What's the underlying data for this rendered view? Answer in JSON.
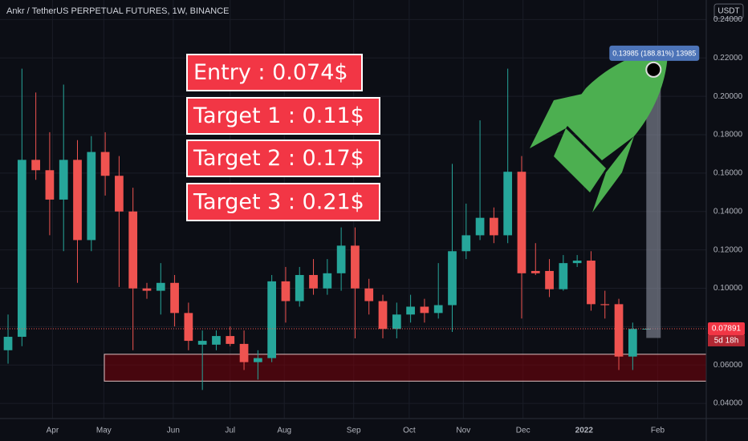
{
  "chart_data": {
    "type": "candlestick",
    "title": "Ankr / TetherUS PERPETUAL FUTURES, 1W, BINANCE",
    "currency": "USDT",
    "up_color": "#26a69a",
    "down_color": "#ef5350",
    "open": [
      0.0677,
      0.0747,
      0.1669,
      0.1615,
      0.1462,
      0.1669,
      0.1251,
      0.171,
      0.1586,
      0.14,
      0.0999,
      0.0987,
      0.1028,
      0.0871,
      0.0706,
      0.0706,
      0.0751,
      0.071,
      0.0615,
      0.0636,
      0.1036,
      0.0933,
      0.1069,
      0.0999,
      0.1078,
      0.1222,
      0.0999,
      0.0933,
      0.0788,
      0.0863,
      0.0904,
      0.0871,
      0.0912,
      0.1193,
      0.1276,
      0.1367,
      0.1276,
      0.1607,
      0.109,
      0.109,
      0.0995,
      0.1131,
      0.1144,
      0.0917,
      0.0917,
      0.0644,
      0.0788
    ],
    "high": [
      0.0863,
      0.2144,
      0.202,
      0.1813,
      0.2061,
      0.1772,
      0.1793,
      0.1813,
      0.1689,
      0.1524,
      0.1028,
      0.1131,
      0.1069,
      0.0925,
      0.078,
      0.078,
      0.0801,
      0.078,
      0.0677,
      0.1069,
      0.1111,
      0.1111,
      0.1152,
      0.1152,
      0.1317,
      0.1317,
      0.1049,
      0.0966,
      0.0925,
      0.0966,
      0.0945,
      0.1131,
      0.1648,
      0.1441,
      0.1875,
      0.1421,
      0.2144,
      0.1689,
      0.1235,
      0.1152,
      0.1173,
      0.1173,
      0.1193,
      0.0987,
      0.0945,
      0.0821,
      0.0788
    ],
    "low": [
      0.0607,
      0.0698,
      0.1565,
      0.1276,
      0.1193,
      0.1028,
      0.1193,
      0.1483,
      0.1007,
      0.0677,
      0.0945,
      0.0863,
      0.0801,
      0.0677,
      0.047,
      0.0677,
      0.0698,
      0.0574,
      0.0524,
      0.0615,
      0.0821,
      0.0904,
      0.0966,
      0.0966,
      0.0987,
      0.0739,
      0.0863,
      0.0739,
      0.0739,
      0.0821,
      0.0821,
      0.0842,
      0.0772,
      0.1152,
      0.1251,
      0.1235,
      0.1235,
      0.0842,
      0.1069,
      0.0954,
      0.0987,
      0.1111,
      0.0883,
      0.0842,
      0.0574,
      0.0574,
      0.0784
    ],
    "close": [
      0.0747,
      0.1669,
      0.1615,
      0.1462,
      0.1669,
      0.1251,
      0.171,
      0.1586,
      0.14,
      0.0999,
      0.0987,
      0.1028,
      0.0871,
      0.0726,
      0.0726,
      0.0751,
      0.071,
      0.0615,
      0.0636,
      0.1036,
      0.0933,
      0.1069,
      0.0999,
      0.1078,
      0.1222,
      0.0999,
      0.0933,
      0.0788,
      0.0863,
      0.0904,
      0.0871,
      0.0912,
      0.1193,
      0.1276,
      0.1367,
      0.1276,
      0.1607,
      0.1078,
      0.1078,
      0.0995,
      0.1131,
      0.1144,
      0.0917,
      0.0912,
      0.0644,
      0.0788,
      0.0789
    ],
    "xlim": [
      -0.58,
      50.3
    ],
    "xticks": [
      {
        "value": 3.2,
        "label": "Apr"
      },
      {
        "value": 6.9,
        "label": "May"
      },
      {
        "value": 11.9,
        "label": "Jun"
      },
      {
        "value": 16.0,
        "label": "Jul"
      },
      {
        "value": 19.9,
        "label": "Aug"
      },
      {
        "value": 24.9,
        "label": "Sep"
      },
      {
        "value": 28.9,
        "label": "Oct"
      },
      {
        "value": 32.8,
        "label": "Nov"
      },
      {
        "value": 37.1,
        "label": "Dec"
      },
      {
        "value": 41.5,
        "label": "2022"
      },
      {
        "value": 46.8,
        "label": "Feb"
      }
    ],
    "ylim": [
      0.0321,
      0.2502
    ],
    "yticks": [
      {
        "value": 0.04,
        "label": "0.04000"
      },
      {
        "value": 0.06,
        "label": "0.06000"
      },
      {
        "value": 0.08,
        "label": "0.08000"
      },
      {
        "value": 0.1,
        "label": "0.10000"
      },
      {
        "value": 0.12,
        "label": "0.12000"
      },
      {
        "value": 0.14,
        "label": "0.14000"
      },
      {
        "value": 0.16,
        "label": "0.16000"
      },
      {
        "value": 0.18,
        "label": "0.18000"
      },
      {
        "value": 0.2,
        "label": "0.20000"
      },
      {
        "value": 0.22,
        "label": "0.22000"
      },
      {
        "value": 0.24,
        "label": "0.24000"
      }
    ],
    "grid": true,
    "last_price": 0.07891,
    "countdown": "5d 18h",
    "support_zone": {
      "from": 0.0516,
      "to": 0.0656
    },
    "measure": {
      "label": "0.13985 (188.81%) 13985",
      "from": 0.0741,
      "to": 0.2139,
      "x": 46.5
    },
    "annotations": [
      "Entry : 0.074$",
      "Target 1 : 0.11$",
      "Target 2 : 0.17$",
      "Target 3 : 0.21$"
    ]
  }
}
